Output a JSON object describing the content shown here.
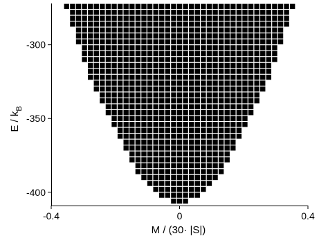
{
  "chart_data": {
    "type": "heatmap",
    "title": "",
    "xlabel": "M / (30· |S|)",
    "ylabel_main": "E / k",
    "ylabel_sub": "B",
    "xlim": [
      -0.4,
      0.4
    ],
    "ylim": [
      -409,
      -272
    ],
    "x_ticks": [
      {
        "value": -0.4,
        "label": "-0.4"
      },
      {
        "value": 0,
        "label": "0"
      },
      {
        "value": 0.4,
        "label": "0.4"
      }
    ],
    "y_ticks": [
      {
        "value": -300,
        "label": "-300"
      },
      {
        "value": -350,
        "label": "-350"
      },
      {
        "value": -400,
        "label": "-400"
      }
    ],
    "cell_x_step": 0.01852,
    "cell_y_step": 4.0,
    "rows": [
      {
        "E": -274,
        "M_min": -0.3519,
        "M_max": 0.3519
      },
      {
        "E": -278,
        "M_min": -0.3333,
        "M_max": 0.3333
      },
      {
        "E": -282,
        "M_min": -0.3333,
        "M_max": 0.3333
      },
      {
        "E": -286,
        "M_min": -0.3333,
        "M_max": 0.3333
      },
      {
        "E": -290,
        "M_min": -0.3148,
        "M_max": 0.3148
      },
      {
        "E": -294,
        "M_min": -0.3148,
        "M_max": 0.3148
      },
      {
        "E": -298,
        "M_min": -0.3148,
        "M_max": 0.3148
      },
      {
        "E": -302,
        "M_min": -0.2963,
        "M_max": 0.2963
      },
      {
        "E": -306,
        "M_min": -0.2963,
        "M_max": 0.2963
      },
      {
        "E": -310,
        "M_min": -0.2963,
        "M_max": 0.2963
      },
      {
        "E": -314,
        "M_min": -0.2778,
        "M_max": 0.2778
      },
      {
        "E": -318,
        "M_min": -0.2778,
        "M_max": 0.2778
      },
      {
        "E": -322,
        "M_min": -0.2778,
        "M_max": 0.2778
      },
      {
        "E": -326,
        "M_min": -0.2593,
        "M_max": 0.2593
      },
      {
        "E": -330,
        "M_min": -0.2593,
        "M_max": 0.2593
      },
      {
        "E": -334,
        "M_min": -0.2407,
        "M_max": 0.2407
      },
      {
        "E": -338,
        "M_min": -0.2407,
        "M_max": 0.2407
      },
      {
        "E": -342,
        "M_min": -0.2222,
        "M_max": 0.2222
      },
      {
        "E": -346,
        "M_min": -0.2222,
        "M_max": 0.2222
      },
      {
        "E": -350,
        "M_min": -0.2037,
        "M_max": 0.2037
      },
      {
        "E": -354,
        "M_min": -0.2037,
        "M_max": 0.2037
      },
      {
        "E": -358,
        "M_min": -0.1852,
        "M_max": 0.1852
      },
      {
        "E": -362,
        "M_min": -0.1852,
        "M_max": 0.1852
      },
      {
        "E": -366,
        "M_min": -0.1667,
        "M_max": 0.1667
      },
      {
        "E": -370,
        "M_min": -0.1667,
        "M_max": 0.1667
      },
      {
        "E": -374,
        "M_min": -0.1481,
        "M_max": 0.1481
      },
      {
        "E": -378,
        "M_min": -0.1481,
        "M_max": 0.1481
      },
      {
        "E": -382,
        "M_min": -0.1296,
        "M_max": 0.1296
      },
      {
        "E": -386,
        "M_min": -0.1296,
        "M_max": 0.1296
      },
      {
        "E": -390,
        "M_min": -0.1111,
        "M_max": 0.1111
      },
      {
        "E": -394,
        "M_min": -0.0926,
        "M_max": 0.0926
      },
      {
        "E": -398,
        "M_min": -0.0741,
        "M_max": 0.0741
      },
      {
        "E": -402,
        "M_min": -0.0556,
        "M_max": 0.0556
      },
      {
        "E": -406,
        "M_min": -0.0185,
        "M_max": 0.0185
      }
    ],
    "cell_color": "#000000",
    "grid_color": "#ffffff",
    "background": "#ffffff",
    "legend": "none",
    "grid": false
  }
}
